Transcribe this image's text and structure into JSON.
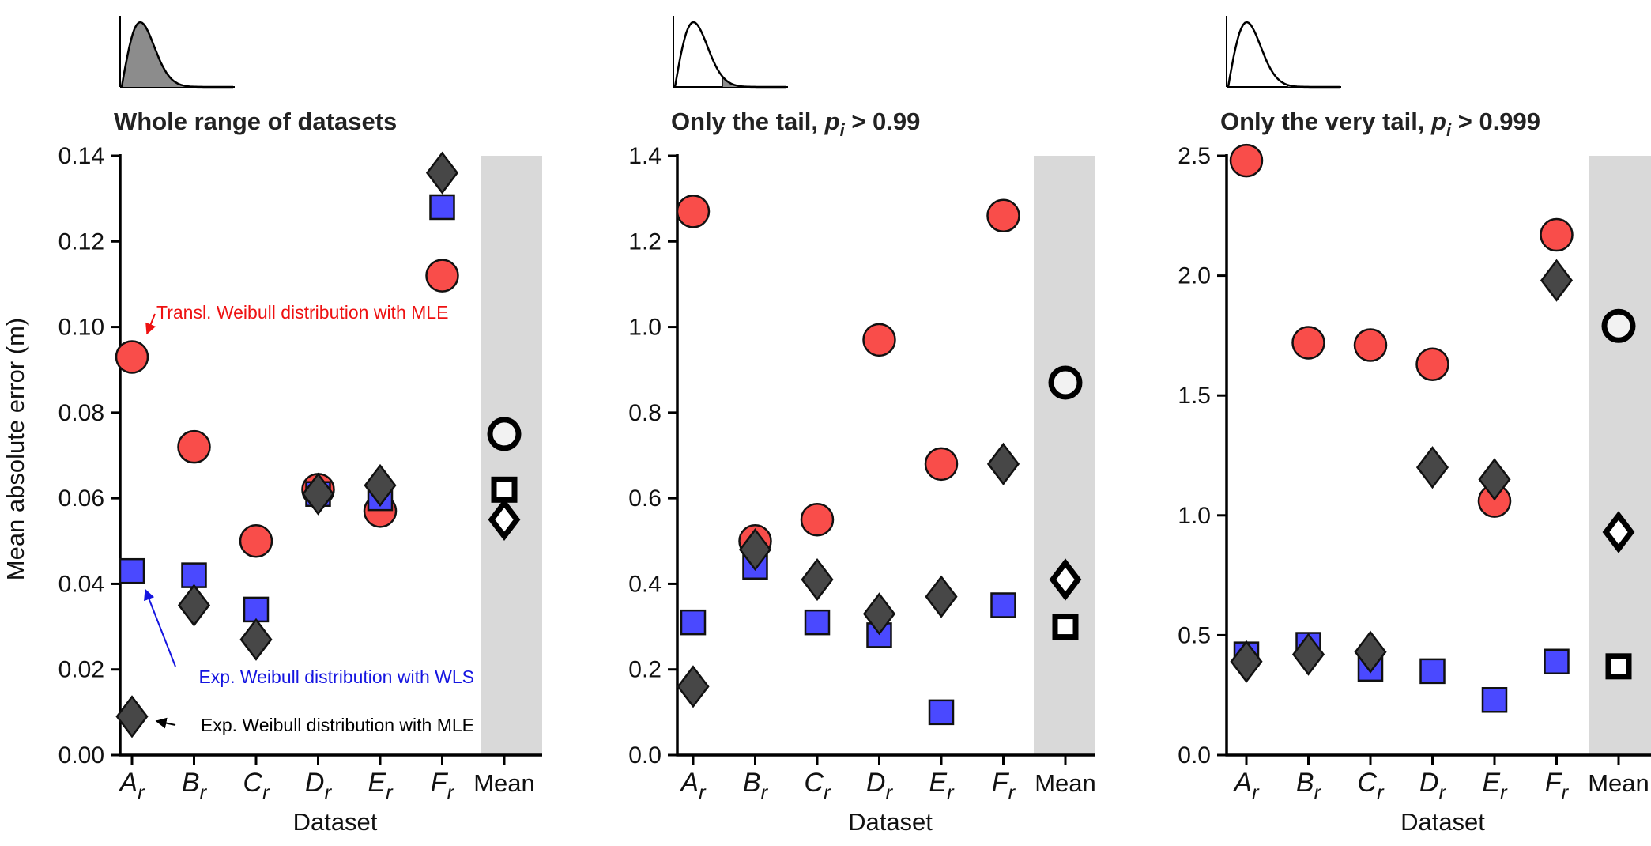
{
  "figure": {
    "ylabel": "Mean absolute error (m)",
    "xlabel": "Dataset",
    "annotations": {
      "transl_mle": "Transl. Weibull distribution with MLE",
      "exp_wls": "Exp. Weibull distribution with WLS",
      "exp_mle": "Exp. Weibull distribution with MLE"
    }
  },
  "chart_data": [
    {
      "type": "scatter",
      "title": "Whole range of datasets",
      "title_suffix": "",
      "xlabel": "Dataset",
      "ylabel": "Mean absolute error (m)",
      "categories": [
        "A_r",
        "B_r",
        "C_r",
        "D_r",
        "E_r",
        "F_r",
        "Mean"
      ],
      "category_labels": [
        {
          "base": "A",
          "sub": "r"
        },
        {
          "base": "B",
          "sub": "r"
        },
        {
          "base": "C",
          "sub": "r"
        },
        {
          "base": "D",
          "sub": "r"
        },
        {
          "base": "E",
          "sub": "r"
        },
        {
          "base": "F",
          "sub": "r"
        },
        {
          "base": "Mean",
          "sub": ""
        }
      ],
      "ylim": [
        0,
        0.14
      ],
      "yticks": [
        0.0,
        0.02,
        0.04,
        0.06,
        0.08,
        0.1,
        0.12,
        0.14
      ],
      "ytick_labels": [
        "0.00",
        "0.02",
        "0.04",
        "0.06",
        "0.08",
        "0.10",
        "0.12",
        "0.14"
      ],
      "shaded_category": "Mean",
      "series": [
        {
          "name": "Transl. Weibull distribution with MLE",
          "marker": "circle",
          "color": "#f94d4a",
          "values": [
            0.093,
            0.072,
            0.05,
            0.062,
            0.057,
            0.112,
            0.075
          ]
        },
        {
          "name": "Exp. Weibull distribution with WLS",
          "marker": "square",
          "color": "#4a49ff",
          "values": [
            0.043,
            0.042,
            0.034,
            0.061,
            0.06,
            0.128,
            0.062
          ]
        },
        {
          "name": "Exp. Weibull distribution with MLE",
          "marker": "diamond",
          "color": "#474747",
          "values": [
            0.009,
            0.035,
            0.027,
            0.061,
            0.063,
            0.136,
            0.055
          ]
        }
      ]
    },
    {
      "type": "scatter",
      "title": "Only the tail, ",
      "title_suffix": "> 0.99",
      "xlabel": "Dataset",
      "ylabel": "",
      "categories": [
        "A_r",
        "B_r",
        "C_r",
        "D_r",
        "E_r",
        "F_r",
        "Mean"
      ],
      "category_labels": [
        {
          "base": "A",
          "sub": "r"
        },
        {
          "base": "B",
          "sub": "r"
        },
        {
          "base": "C",
          "sub": "r"
        },
        {
          "base": "D",
          "sub": "r"
        },
        {
          "base": "E",
          "sub": "r"
        },
        {
          "base": "F",
          "sub": "r"
        },
        {
          "base": "Mean",
          "sub": ""
        }
      ],
      "ylim": [
        0,
        1.4
      ],
      "yticks": [
        0.0,
        0.2,
        0.4,
        0.6,
        0.8,
        1.0,
        1.2,
        1.4
      ],
      "ytick_labels": [
        "0.0",
        "0.2",
        "0.4",
        "0.6",
        "0.8",
        "1.0",
        "1.2",
        "1.4"
      ],
      "shaded_category": "Mean",
      "series": [
        {
          "name": "Transl. Weibull distribution with MLE",
          "marker": "circle",
          "color": "#f94d4a",
          "values": [
            1.27,
            0.5,
            0.55,
            0.97,
            0.68,
            1.26,
            0.87
          ]
        },
        {
          "name": "Exp. Weibull distribution with WLS",
          "marker": "square",
          "color": "#4a49ff",
          "values": [
            0.31,
            0.44,
            0.31,
            0.28,
            0.1,
            0.35,
            0.3
          ]
        },
        {
          "name": "Exp. Weibull distribution with MLE",
          "marker": "diamond",
          "color": "#474747",
          "values": [
            0.16,
            0.48,
            0.41,
            0.33,
            0.37,
            0.68,
            0.41
          ]
        }
      ]
    },
    {
      "type": "scatter",
      "title": "Only the very tail, ",
      "title_suffix": "> 0.999",
      "xlabel": "Dataset",
      "ylabel": "",
      "categories": [
        "A_r",
        "B_r",
        "C_r",
        "D_r",
        "E_r",
        "F_r",
        "Mean"
      ],
      "category_labels": [
        {
          "base": "A",
          "sub": "r"
        },
        {
          "base": "B",
          "sub": "r"
        },
        {
          "base": "C",
          "sub": "r"
        },
        {
          "base": "D",
          "sub": "r"
        },
        {
          "base": "E",
          "sub": "r"
        },
        {
          "base": "F",
          "sub": "r"
        },
        {
          "base": "Mean",
          "sub": ""
        }
      ],
      "ylim": [
        0,
        2.5
      ],
      "yticks": [
        0.0,
        0.5,
        1.0,
        1.5,
        2.0,
        2.5
      ],
      "ytick_labels": [
        "0.0",
        "0.5",
        "1.0",
        "1.5",
        "2.0",
        "2.5"
      ],
      "shaded_category": "Mean",
      "series": [
        {
          "name": "Transl. Weibull distribution with MLE",
          "marker": "circle",
          "color": "#f94d4a",
          "values": [
            2.48,
            1.72,
            1.71,
            1.63,
            1.06,
            2.17,
            1.79
          ]
        },
        {
          "name": "Exp. Weibull distribution with WLS",
          "marker": "square",
          "color": "#4a49ff",
          "values": [
            0.42,
            0.46,
            0.36,
            0.35,
            0.23,
            0.39,
            0.37
          ]
        },
        {
          "name": "Exp. Weibull distribution with MLE",
          "marker": "diamond",
          "color": "#474747",
          "values": [
            0.39,
            0.42,
            0.43,
            1.2,
            1.15,
            1.98,
            0.93
          ]
        }
      ]
    }
  ]
}
